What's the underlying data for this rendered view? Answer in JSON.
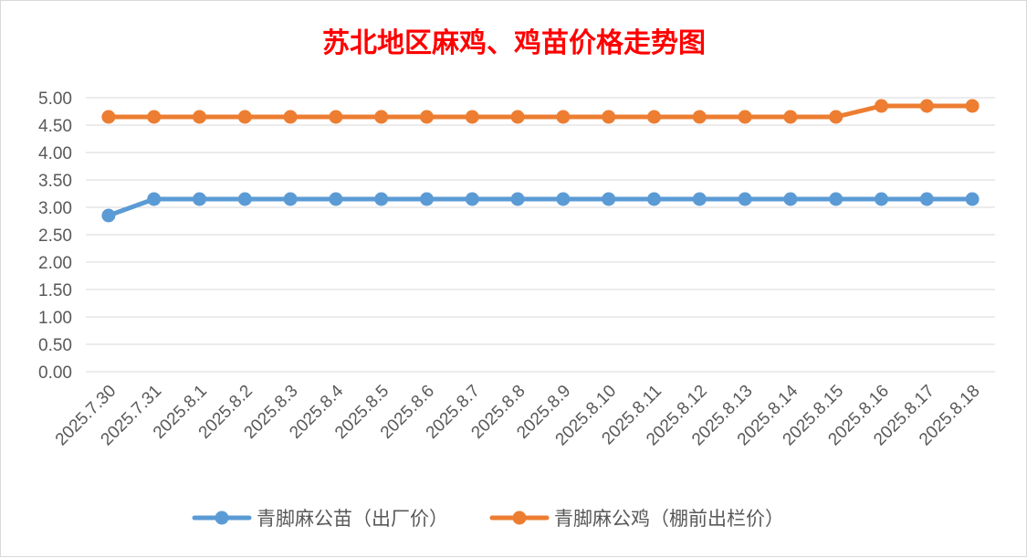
{
  "chart_data": {
    "type": "line",
    "title": "苏北地区麻鸡、鸡苗价格走势图",
    "title_color": "#ff0000",
    "xlabel": "",
    "ylabel": "",
    "ylim": [
      0,
      5
    ],
    "y_ticks": [
      "0.00",
      "0.50",
      "1.00",
      "1.50",
      "2.00",
      "2.50",
      "3.00",
      "3.50",
      "4.00",
      "4.50",
      "5.00"
    ],
    "grid": true,
    "legend_position": "bottom",
    "categories": [
      "2025.7.30",
      "2025.7.31",
      "2025.8.1",
      "2025.8.2",
      "2025.8.3",
      "2025.8.4",
      "2025.8.5",
      "2025.8.6",
      "2025.8.7",
      "2025.8.8",
      "2025.8.9",
      "2025.8.10",
      "2025.8.11",
      "2025.8.12",
      "2025.8.13",
      "2025.8.14",
      "2025.8.15",
      "2025.8.16",
      "2025.8.17",
      "2025.8.18"
    ],
    "series": [
      {
        "name": "青脚麻公苗（出厂价）",
        "color": "#5b9bd5",
        "values": [
          2.85,
          3.15,
          3.15,
          3.15,
          3.15,
          3.15,
          3.15,
          3.15,
          3.15,
          3.15,
          3.15,
          3.15,
          3.15,
          3.15,
          3.15,
          3.15,
          3.15,
          3.15,
          3.15,
          3.15
        ]
      },
      {
        "name": "青脚麻公鸡（棚前出栏价）",
        "color": "#ed7d31",
        "values": [
          4.65,
          4.65,
          4.65,
          4.65,
          4.65,
          4.65,
          4.65,
          4.65,
          4.65,
          4.65,
          4.65,
          4.65,
          4.65,
          4.65,
          4.65,
          4.65,
          4.65,
          4.85,
          4.85,
          4.85
        ]
      }
    ]
  }
}
